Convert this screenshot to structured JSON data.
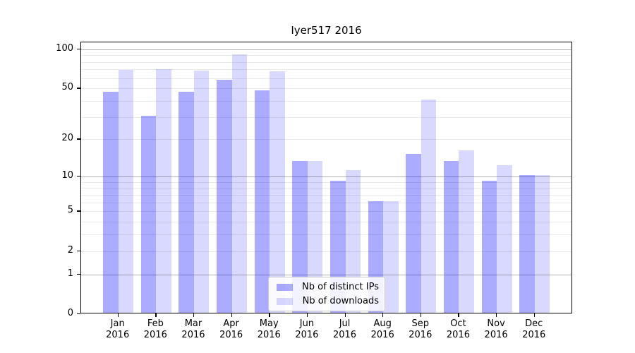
{
  "chart_data": {
    "type": "bar",
    "title": "Iyer517 2016",
    "categories": [
      "Jan 2016",
      "Feb 2016",
      "Mar 2016",
      "Apr 2016",
      "May 2016",
      "Jun 2016",
      "Jul 2016",
      "Aug 2016",
      "Sep 2016",
      "Oct 2016",
      "Nov 2016",
      "Dec 2016"
    ],
    "series": [
      {
        "name": "Nb of distinct IPs",
        "values": [
          46,
          30,
          46,
          57,
          47,
          13,
          9,
          6,
          15,
          13,
          9,
          10
        ]
      },
      {
        "name": "Nb of downloads",
        "values": [
          68,
          69,
          67,
          89,
          66,
          13,
          11,
          6,
          40,
          16,
          12,
          10
        ]
      }
    ],
    "yscale": "log10(1+v)",
    "ylim": [
      0,
      112
    ],
    "ytick_labels": [
      "100",
      "50",
      "20",
      "10",
      "5",
      "2",
      "1",
      "0"
    ],
    "ytick_values": [
      100,
      50,
      20,
      10,
      5,
      2,
      1,
      0
    ],
    "grid_major_values": [
      100,
      10,
      1
    ],
    "grid_minor_values": [
      90,
      80,
      70,
      60,
      50,
      40,
      30,
      20,
      9,
      8,
      7,
      6,
      5,
      4,
      3,
      2
    ],
    "grid": "horizontal",
    "legend_position": "lower center"
  },
  "colors": {
    "bar_distinct_ips": "rgba(0,0,255,0.33)",
    "bar_downloads": "rgba(0,0,255,0.15)",
    "grid_major": "#b0b0b0",
    "grid_minor": "#e9e9ee",
    "spine": "#000000",
    "text": "#000000",
    "legend_bg": "rgba(255,255,255,0.85)",
    "legend_border": "#cccccc"
  }
}
